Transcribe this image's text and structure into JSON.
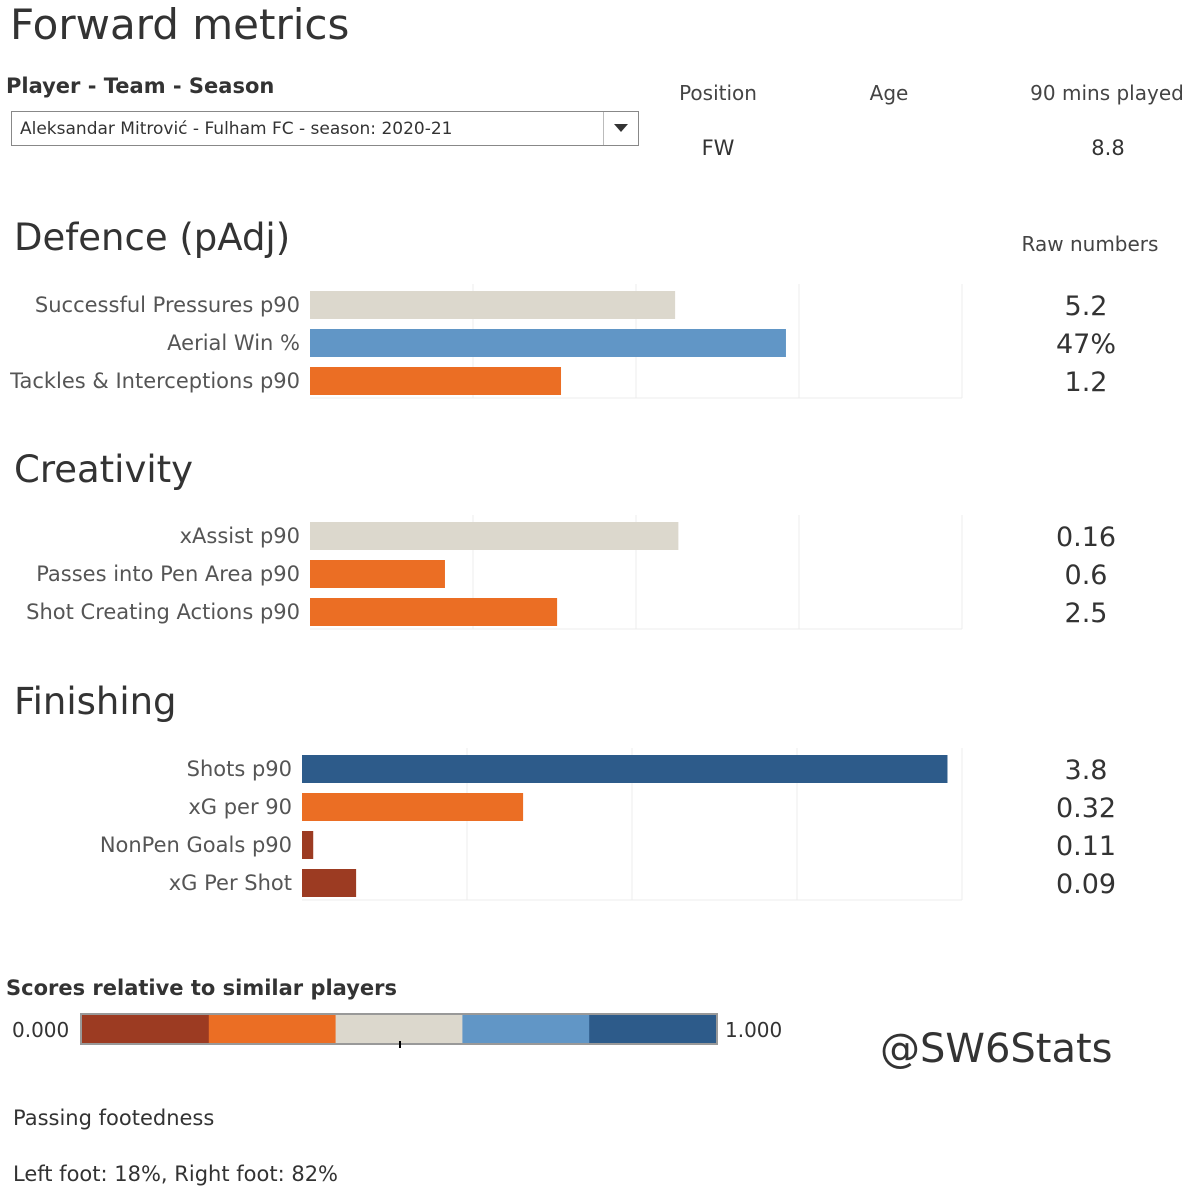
{
  "title": "Forward metrics",
  "selector": {
    "label": "Player - Team - Season",
    "value": "Aleksandar Mitrović - Fulham FC - season: 2020-21"
  },
  "info": {
    "position_header": "Position",
    "age_header": "Age",
    "mins_header": "90 mins played",
    "position_value": "FW",
    "age_value": "",
    "mins_value": "8.8"
  },
  "raw_header": "Raw numbers",
  "colors": {
    "dark_red": "#9c3b22",
    "orange": "#eb6e24",
    "beige": "#dcd8cd",
    "light_blue": "#6196c6",
    "dark_blue": "#2d5b8a"
  },
  "chart_data": [
    {
      "type": "bar",
      "title": "Defence (pAdj)",
      "categories": [
        "Successful Pressures p90",
        "Aerial Win %",
        "Tackles & Interceptions p90"
      ],
      "values": [
        0.56,
        0.73,
        0.385
      ],
      "raw": [
        "5.2",
        "47%",
        "1.2"
      ],
      "colors": [
        "#dcd8cd",
        "#6196c6",
        "#eb6e24"
      ],
      "xlim": [
        0,
        1
      ],
      "grid": true
    },
    {
      "type": "bar",
      "title": "Creativity",
      "categories": [
        "xAssist p90",
        "Passes into Pen Area p90",
        "Shot Creating Actions p90"
      ],
      "values": [
        0.565,
        0.207,
        0.379
      ],
      "raw": [
        "0.16",
        "0.6",
        "2.5"
      ],
      "colors": [
        "#dcd8cd",
        "#eb6e24",
        "#eb6e24"
      ],
      "xlim": [
        0,
        1
      ],
      "grid": true
    },
    {
      "type": "bar",
      "title": "Finishing",
      "categories": [
        "Shots p90",
        "xG per 90",
        "NonPen Goals p90",
        "xG Per Shot"
      ],
      "values": [
        0.978,
        0.335,
        0.017,
        0.082
      ],
      "raw": [
        "3.8",
        "0.32",
        "0.11",
        "0.09"
      ],
      "colors": [
        "#2d5b8a",
        "#eb6e24",
        "#9c3b22",
        "#9c3b22"
      ],
      "xlim": [
        0,
        1
      ],
      "grid": true
    }
  ],
  "legend": {
    "label": "Scores relative to similar players",
    "min": "0.000",
    "max": "1.000",
    "colors": [
      "#9c3b22",
      "#eb6e24",
      "#dcd8cd",
      "#6196c6",
      "#2d5b8a"
    ]
  },
  "handle": "@SW6Stats",
  "footedness": {
    "label": "Passing footedness",
    "value": "Left foot: 18%, Right foot: 82%"
  }
}
